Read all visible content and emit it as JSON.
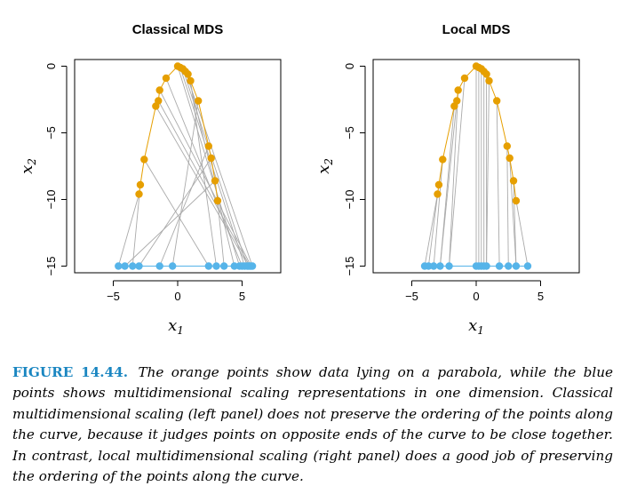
{
  "colors": {
    "orange": "#E69F00",
    "blue": "#56B4E9",
    "line": "#AAAAAA",
    "caption_label": "#1A86C1"
  },
  "caption": {
    "label": "FIGURE 14.44.",
    "text": "The orange points show data lying on a parabola, while the blue points shows multidimensional scaling representations in one dimension. Classical multidimensional scaling (left panel) does not preserve the ordering of the points along the curve, because it judges points on opposite ends of the curve to be close together. In contrast, local multidimensional scaling (right panel) does a good job of preserving the ordering of the points along the curve."
  },
  "chart_data": [
    {
      "type": "scatter",
      "title": "Classical MDS",
      "xlabel": "x1",
      "ylabel": "x2",
      "xlim": [
        -8,
        8
      ],
      "ylim": [
        -15.5,
        0.5
      ],
      "xticks": [
        -5,
        0,
        5
      ],
      "yticks": [
        0,
        -5,
        -10,
        -15
      ],
      "grid": false,
      "series": [
        {
          "x": [
            -3.0,
            -2.9,
            -2.6,
            -1.7,
            -1.5,
            -1.4,
            -0.9,
            0.0,
            0.2,
            0.4,
            0.6,
            0.8,
            1.0,
            1.6,
            2.4,
            2.6,
            2.9,
            3.1
          ],
          "y": [
            -9.6,
            -8.9,
            -7.0,
            -3.0,
            -2.6,
            -1.8,
            -0.9,
            0.0,
            -0.1,
            -0.2,
            -0.4,
            -0.6,
            -1.1,
            -2.6,
            -6.0,
            -6.9,
            -8.6,
            -10.1
          ]
        },
        {
          "x": [
            -4.6,
            -4.1,
            -3.5,
            -3.0,
            -1.4,
            -0.4,
            2.4,
            3.0,
            3.6,
            4.4,
            4.8,
            5.0,
            5.2,
            5.4,
            5.5,
            5.6,
            5.7,
            5.8
          ],
          "y": [
            -15,
            -15,
            -15,
            -15,
            -15,
            -15,
            -15,
            -15,
            -15,
            -15,
            -15,
            -15,
            -15,
            -15,
            -15,
            -15,
            -15,
            -15
          ]
        }
      ],
      "links": [
        [
          0,
          0
        ],
        [
          1,
          2
        ],
        [
          2,
          6
        ],
        [
          3,
          14
        ],
        [
          4,
          15
        ],
        [
          5,
          16
        ],
        [
          6,
          11
        ],
        [
          7,
          10
        ],
        [
          8,
          12
        ],
        [
          9,
          13
        ],
        [
          10,
          17
        ],
        [
          11,
          9
        ],
        [
          12,
          7
        ],
        [
          13,
          5
        ],
        [
          14,
          4
        ],
        [
          15,
          3
        ],
        [
          16,
          1
        ],
        [
          17,
          8
        ]
      ]
    },
    {
      "type": "scatter",
      "title": "Local MDS",
      "xlabel": "x1",
      "ylabel": "x2",
      "xlim": [
        -8,
        8
      ],
      "ylim": [
        -15.5,
        0.5
      ],
      "xticks": [
        -5,
        0,
        5
      ],
      "yticks": [
        0,
        -5,
        -10,
        -15
      ],
      "grid": false,
      "series": [
        {
          "x": [
            -3.0,
            -2.9,
            -2.6,
            -1.7,
            -1.5,
            -1.4,
            -0.9,
            0.0,
            0.2,
            0.4,
            0.6,
            0.8,
            1.0,
            1.6,
            2.4,
            2.6,
            2.9,
            3.1
          ],
          "y": [
            -9.6,
            -8.9,
            -7.0,
            -3.0,
            -2.6,
            -1.8,
            -0.9,
            0.0,
            -0.1,
            -0.2,
            -0.4,
            -0.6,
            -1.1,
            -2.6,
            -6.0,
            -6.9,
            -8.6,
            -10.1
          ]
        },
        {
          "x": [
            -4.0,
            -3.7,
            -3.3,
            -2.8,
            -2.1,
            0.0,
            0.2,
            0.4,
            0.6,
            0.8,
            1.8,
            2.5,
            3.1,
            4.0
          ],
          "y": [
            -15,
            -15,
            -15,
            -15,
            -15,
            -15,
            -15,
            -15,
            -15,
            -15,
            -15,
            -15,
            -15,
            -15
          ]
        }
      ],
      "links": [
        [
          0,
          0
        ],
        [
          1,
          1
        ],
        [
          2,
          2
        ],
        [
          3,
          3
        ],
        [
          4,
          3
        ],
        [
          5,
          4
        ],
        [
          6,
          4
        ],
        [
          7,
          5
        ],
        [
          8,
          6
        ],
        [
          9,
          7
        ],
        [
          10,
          8
        ],
        [
          11,
          9
        ],
        [
          12,
          9
        ],
        [
          13,
          10
        ],
        [
          14,
          11
        ],
        [
          15,
          12
        ],
        [
          16,
          12
        ],
        [
          17,
          13
        ]
      ]
    }
  ]
}
